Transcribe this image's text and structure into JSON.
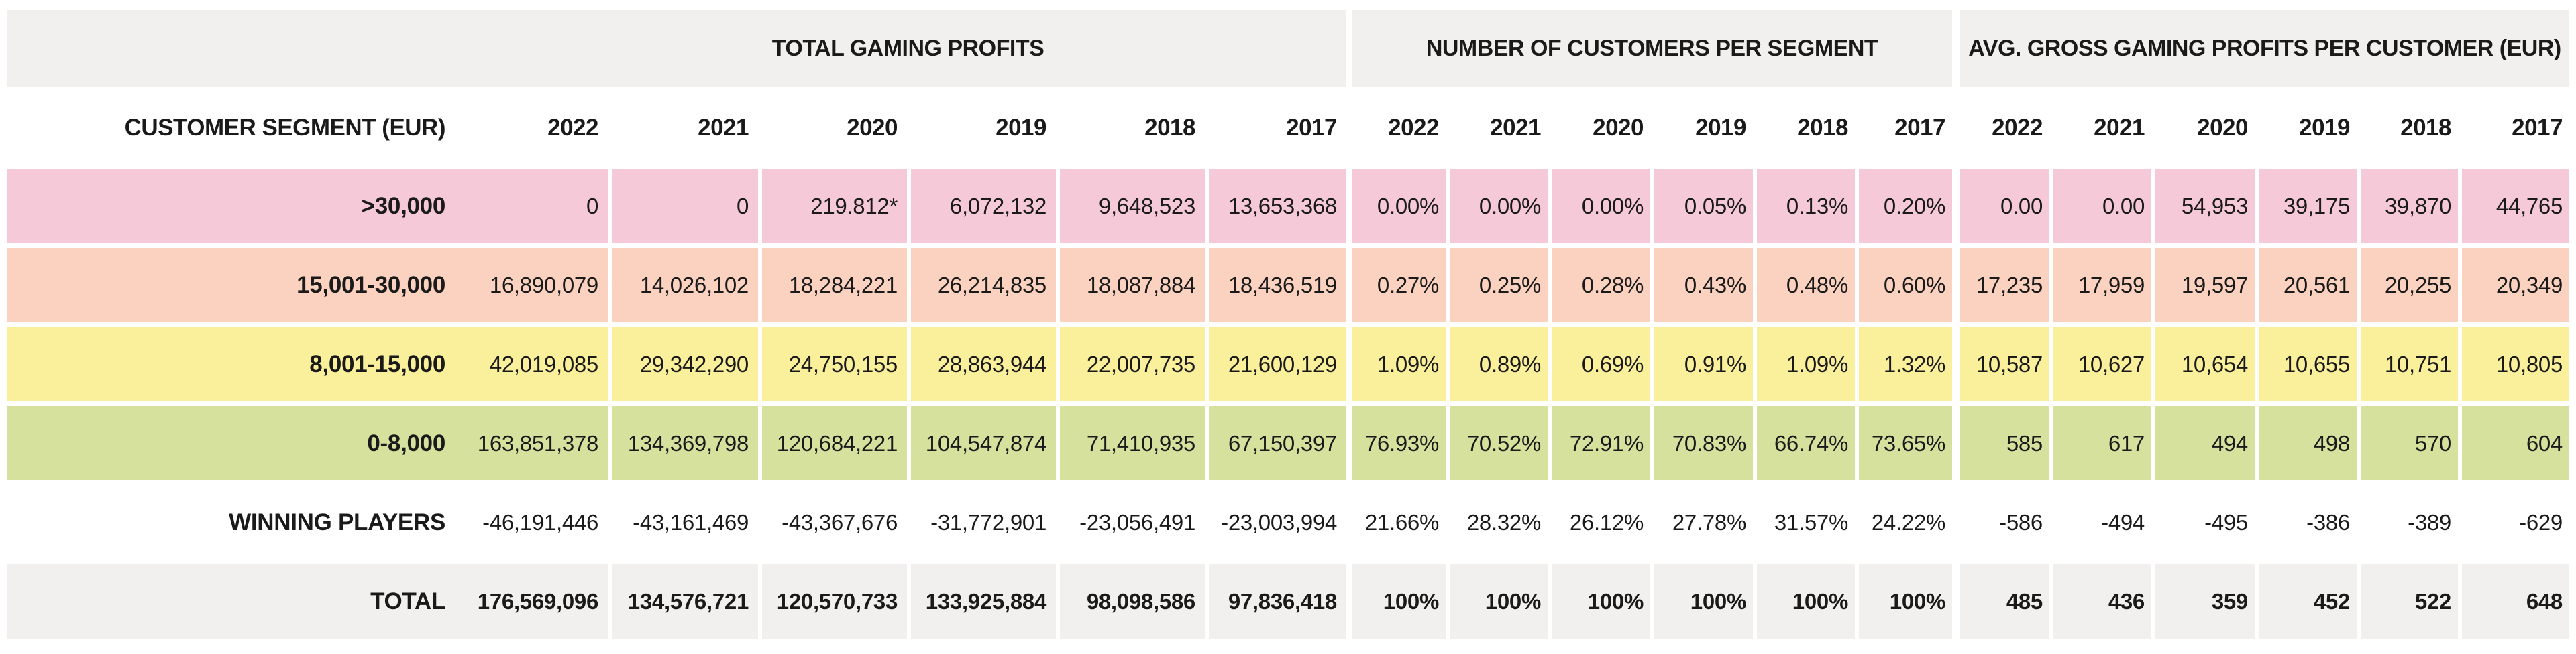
{
  "colors": {
    "band_background": "#f1f0ee",
    "text": "#1a1a1a",
    "row_pink": "#f6c9d8",
    "row_peach": "#fbd2c0",
    "row_yellow": "#faef9b",
    "row_green": "#d6e19e",
    "row_white": "#ffffff",
    "row_gray": "#f1f0ee"
  },
  "chart_data": {
    "type": "table",
    "segment_header": "CUSTOMER SEGMENT (EUR)",
    "column_groups": [
      {
        "label": "TOTAL GAMING PROFITS",
        "key": "profits",
        "years": [
          "2022",
          "2021",
          "2020",
          "2019",
          "2018",
          "2017"
        ]
      },
      {
        "label": "NUMBER OF CUSTOMERS PER SEGMENT",
        "key": "customers",
        "years": [
          "2022",
          "2021",
          "2020",
          "2019",
          "2018",
          "2017"
        ]
      },
      {
        "label": "AVG. GROSS GAMING PROFITS PER CUSTOMER (EUR)",
        "key": "avg",
        "years": [
          "2022",
          "2021",
          "2020",
          "2019",
          "2018",
          "2017"
        ]
      }
    ],
    "rows": [
      {
        "segment": ">30,000",
        "row_color": "#f6c9d8",
        "bold_values": false,
        "profits": [
          "0",
          "0",
          "219.812*",
          "6,072,132",
          "9,648,523",
          "13,653,368"
        ],
        "customers": [
          "0.00%",
          "0.00%",
          "0.00%",
          "0.05%",
          "0.13%",
          "0.20%"
        ],
        "avg": [
          "0.00",
          "0.00",
          "54,953",
          "39,175",
          "39,870",
          "44,765"
        ]
      },
      {
        "segment": "15,001-30,000",
        "row_color": "#fbd2c0",
        "bold_values": false,
        "profits": [
          "16,890,079",
          "14,026,102",
          "18,284,221",
          "26,214,835",
          "18,087,884",
          "18,436,519"
        ],
        "customers": [
          "0.27%",
          "0.25%",
          "0.28%",
          "0.43%",
          "0.48%",
          "0.60%"
        ],
        "avg": [
          "17,235",
          "17,959",
          "19,597",
          "20,561",
          "20,255",
          "20,349"
        ]
      },
      {
        "segment": "8,001-15,000",
        "row_color": "#faef9b",
        "bold_values": false,
        "profits": [
          "42,019,085",
          "29,342,290",
          "24,750,155",
          "28,863,944",
          "22,007,735",
          "21,600,129"
        ],
        "customers": [
          "1.09%",
          "0.89%",
          "0.69%",
          "0.91%",
          "1.09%",
          "1.32%"
        ],
        "avg": [
          "10,587",
          "10,627",
          "10,654",
          "10,655",
          "10,751",
          "10,805"
        ]
      },
      {
        "segment": "0-8,000",
        "row_color": "#d6e19e",
        "bold_values": false,
        "profits": [
          "163,851,378",
          "134,369,798",
          "120,684,221",
          "104,547,874",
          "71,410,935",
          "67,150,397"
        ],
        "customers": [
          "76.93%",
          "70.52%",
          "72.91%",
          "70.83%",
          "66.74%",
          "73.65%"
        ],
        "avg": [
          "585",
          "617",
          "494",
          "498",
          "570",
          "604"
        ]
      },
      {
        "segment": "WINNING PLAYERS",
        "row_color": "#ffffff",
        "bold_values": false,
        "profits": [
          "-46,191,446",
          "-43,161,469",
          "-43,367,676",
          "-31,772,901",
          "-23,056,491",
          "-23,003,994"
        ],
        "customers": [
          "21.66%",
          "28.32%",
          "26.12%",
          "27.78%",
          "31.57%",
          "24.22%"
        ],
        "avg": [
          "-586",
          "-494",
          "-495",
          "-386",
          "-389",
          "-629"
        ]
      },
      {
        "segment": "TOTAL",
        "row_color": "#f1f0ee",
        "bold_values": true,
        "profits": [
          "176,569,096",
          "134,576,721",
          "120,570,733",
          "133,925,884",
          "98,098,586",
          "97,836,418"
        ],
        "customers": [
          "100%",
          "100%",
          "100%",
          "100%",
          "100%",
          "100%"
        ],
        "avg": [
          "485",
          "436",
          "359",
          "452",
          "522",
          "648"
        ]
      }
    ]
  }
}
